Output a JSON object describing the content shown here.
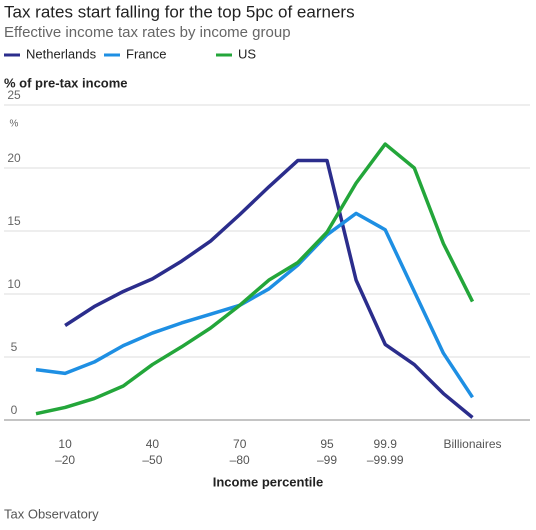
{
  "chart_data": {
    "type": "line",
    "title": "Tax rates start falling for the top 5pc of earners",
    "subtitle": "Effective income tax rates by income group",
    "y_label": "% of pre-tax income",
    "y_unit": "%",
    "x_label": "Income percentile",
    "source": "Tax Observatory",
    "categories": [
      null,
      [
        "10",
        "–20"
      ],
      null,
      null,
      [
        "40",
        "–50"
      ],
      null,
      null,
      [
        "70",
        "–80"
      ],
      null,
      null,
      [
        "95",
        "–99"
      ],
      null,
      [
        "99.9",
        "–99.99"
      ],
      null,
      null,
      [
        "Billionaires"
      ]
    ],
    "series": [
      {
        "name": "Netherlands",
        "color": "#2b2d8c",
        "values": [
          null,
          7.5,
          9.0,
          10.2,
          11.2,
          12.6,
          14.2,
          16.3,
          18.5,
          20.6,
          20.6,
          11.1,
          6.0,
          4.4,
          2.1,
          0.2
        ]
      },
      {
        "name": "France",
        "color": "#1e8fe3",
        "values": [
          4.0,
          3.7,
          4.6,
          5.9,
          6.9,
          7.7,
          8.4,
          9.1,
          10.4,
          12.3,
          14.7,
          16.4,
          15.1,
          10.2,
          5.3,
          1.8
        ]
      },
      {
        "name": "US",
        "color": "#23a63a",
        "values": [
          0.5,
          1.0,
          1.7,
          2.7,
          4.4,
          5.8,
          7.3,
          9.1,
          11.1,
          12.5,
          14.9,
          18.8,
          21.9,
          20.0,
          14.0,
          9.4
        ]
      }
    ],
    "ylim": [
      0,
      25
    ],
    "yticks": [
      0,
      5,
      10,
      15,
      20,
      25
    ],
    "grid": true
  }
}
